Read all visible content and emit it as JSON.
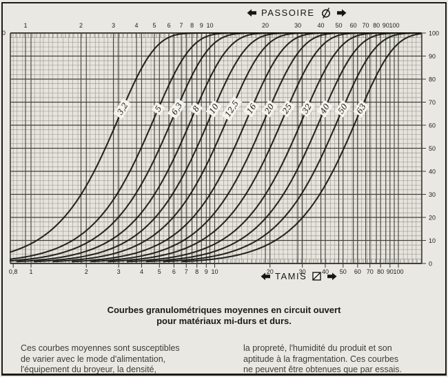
{
  "colors": {
    "paper": "#e6e4dd",
    "grid_minor": "#8f8f88",
    "grid_major": "#403f3a",
    "curve_ink": "#17160f",
    "label_box": "#f3f2ec",
    "text_ink": "#1c1c1a"
  },
  "header": {
    "label": "PASSOIRE",
    "symbol": "round-hole"
  },
  "footer": {
    "label": "TAMIS",
    "symbol": "square-hole"
  },
  "left_axis_fragment": "0",
  "chart_data": {
    "type": "line",
    "title": "Courbes granulométriques moyennes en circuit ouvert pour matériaux mi-durs et durs.",
    "x_scale": "log",
    "grid": "on",
    "top_axis": {
      "title": "PASSOIRE",
      "unit_symbol": "⌀",
      "ticks": [
        1,
        2,
        3,
        4,
        5,
        6,
        7,
        8,
        9,
        10,
        20,
        30,
        40,
        50,
        60,
        70,
        80,
        90,
        100
      ],
      "tick_labels": [
        "1",
        "2",
        "3",
        "4",
        "5",
        "6",
        "7",
        "8",
        "9",
        "10",
        "20",
        "30",
        "40",
        "50",
        "60",
        "70",
        "80",
        "90",
        "100"
      ]
    },
    "bottom_axis": {
      "title": "TAMIS",
      "unit_symbol": "▱",
      "ticks": [
        0.8,
        1,
        2,
        3,
        4,
        5,
        6,
        7,
        8,
        9,
        10,
        20,
        30,
        40,
        50,
        60,
        70,
        80,
        90,
        100
      ],
      "tick_labels": [
        "0,8",
        "1",
        "2",
        "3",
        "4",
        "5",
        "6",
        "7",
        "8",
        "9",
        "10",
        "20",
        "30",
        "40",
        "50",
        "60",
        "70",
        "80",
        "90",
        "100"
      ]
    },
    "y_axis": {
      "side": "right",
      "range": [
        0,
        100
      ],
      "major_step": 10,
      "minor_step": 2,
      "ticks": [
        0,
        10,
        20,
        30,
        40,
        50,
        60,
        70,
        80,
        90,
        100
      ]
    },
    "curve_model": {
      "type": "rosin-rammler-cumulative-passing",
      "exponent": 2.2
    },
    "series": [
      {
        "label": "3,2",
        "mesh_size": 3.2,
        "percent_passing_points": {
          "d10": 1.15,
          "d25": 1.8,
          "d50": 2.7,
          "d75": 3.7,
          "d90": 4.7
        }
      },
      {
        "label": "5",
        "mesh_size": 5,
        "percent_passing_points": {
          "d10": 1.8,
          "d25": 2.8,
          "d50": 4.2,
          "d75": 5.8,
          "d90": 7.3
        }
      },
      {
        "label": "6,3",
        "mesh_size": 6.3,
        "percent_passing_points": {
          "d10": 2.3,
          "d25": 3.6,
          "d50": 5.3,
          "d75": 7.3,
          "d90": 9.2
        }
      },
      {
        "label": "8",
        "mesh_size": 8,
        "percent_passing_points": {
          "d10": 2.9,
          "d25": 4.5,
          "d50": 6.8,
          "d75": 9.3,
          "d90": 11.7
        }
      },
      {
        "label": "10",
        "mesh_size": 10,
        "percent_passing_points": {
          "d10": 3.6,
          "d25": 5.7,
          "d50": 8.5,
          "d75": 11.6,
          "d90": 14.6
        }
      },
      {
        "label": "12,5",
        "mesh_size": 12.5,
        "percent_passing_points": {
          "d10": 4.5,
          "d25": 7.1,
          "d50": 10.6,
          "d75": 14.5,
          "d90": 18.3
        }
      },
      {
        "label": "16",
        "mesh_size": 16,
        "percent_passing_points": {
          "d10": 5.8,
          "d25": 9.1,
          "d50": 13.5,
          "d75": 18.6,
          "d90": 23.4
        }
      },
      {
        "label": "20",
        "mesh_size": 20,
        "percent_passing_points": {
          "d10": 7.2,
          "d25": 11.4,
          "d50": 16.9,
          "d75": 23.2,
          "d90": 29.2
        }
      },
      {
        "label": "25",
        "mesh_size": 25,
        "percent_passing_points": {
          "d10": 9.0,
          "d25": 14.2,
          "d50": 21.2,
          "d75": 29.0,
          "d90": 36.5
        }
      },
      {
        "label": "32",
        "mesh_size": 32,
        "percent_passing_points": {
          "d10": 11.5,
          "d25": 18.2,
          "d50": 27.1,
          "d75": 37.1,
          "d90": 46.8
        }
      },
      {
        "label": "40",
        "mesh_size": 40,
        "percent_passing_points": {
          "d10": 14.4,
          "d25": 22.7,
          "d50": 33.9,
          "d75": 46.4,
          "d90": 58.4
        }
      },
      {
        "label": "50",
        "mesh_size": 50,
        "percent_passing_points": {
          "d10": 18.0,
          "d25": 28.4,
          "d50": 42.3,
          "d75": 58.0,
          "d90": 73.1
        }
      },
      {
        "label": "63",
        "mesh_size": 63,
        "percent_passing_points": {
          "d10": 22.6,
          "d25": 35.8,
          "d50": 53.3,
          "d75": 73.1,
          "d90": 92.1
        }
      }
    ]
  },
  "caption": {
    "title_lines": [
      "Courbes granulométriques moyennes en circuit ouvert",
      "pour matériaux mi-durs et durs."
    ],
    "left_lines": [
      "Ces courbes moyennes sont susceptibles",
      "de varier avec le mode d'alimentation,",
      "l'équipement du broyeur, la densité,"
    ],
    "right_lines": [
      "la propreté, l'humidité du produit et son",
      "aptitude à la fragmentation. Ces courbes",
      "ne peuvent être obtenues que par essais."
    ]
  }
}
